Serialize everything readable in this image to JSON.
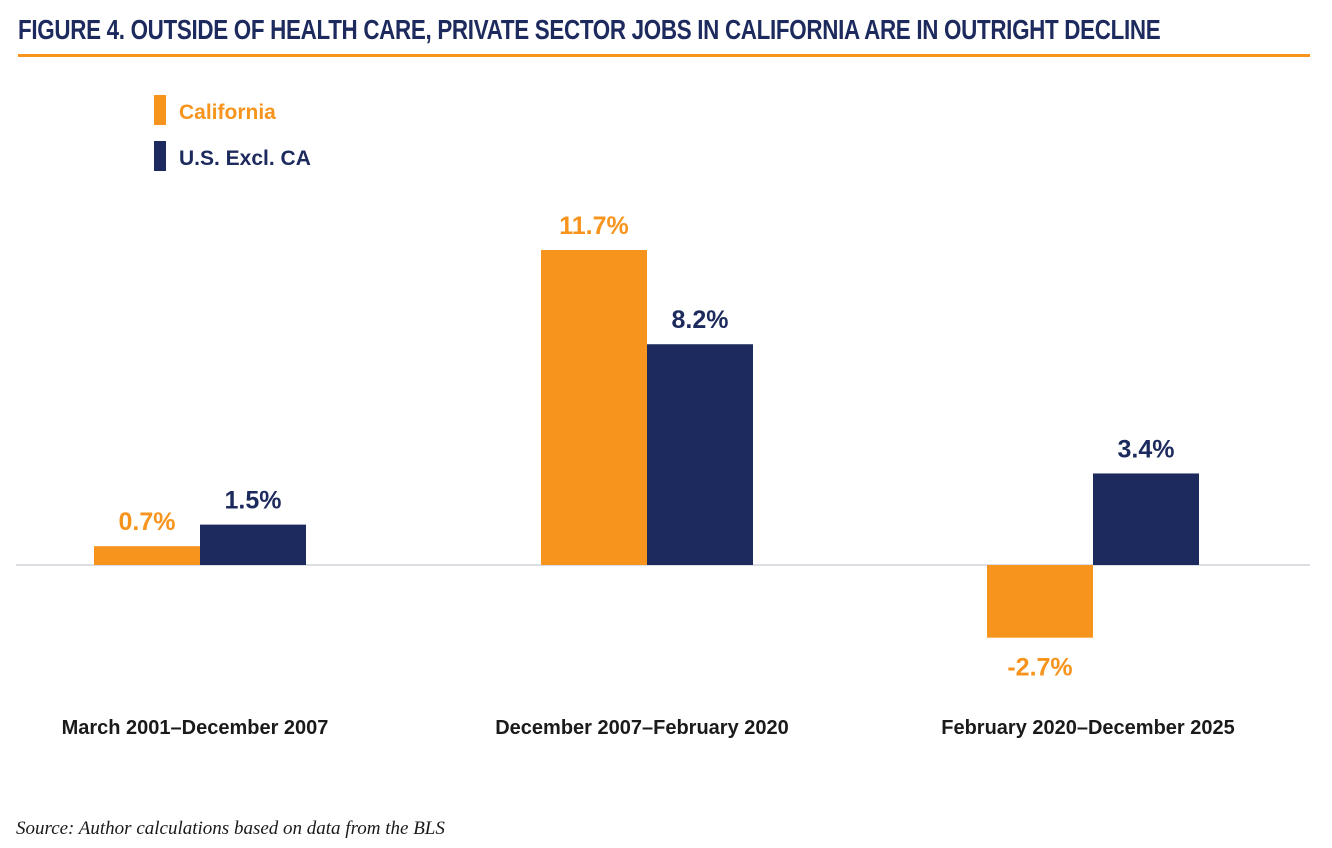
{
  "figure": {
    "label": "FIGURE 4.",
    "title": "OUTSIDE OF HEALTH CARE, PRIVATE SECTOR JOBS IN CALIFORNIA ARE IN OUTRIGHT DECLINE"
  },
  "source": "Source: Author calculations based on data from the BLS",
  "colors": {
    "california": "#f7941d",
    "us": "#1d2a5d",
    "axis": "#cfd3d8",
    "category_text": "#1a1a1a"
  },
  "chart_data": {
    "type": "bar",
    "title": "OUTSIDE OF HEALTH CARE, PRIVATE SECTOR JOBS IN CALIFORNIA ARE IN OUTRIGHT DECLINE",
    "xlabel": "",
    "ylabel": "",
    "categories": [
      "March 2001–December 2007",
      "December 2007–February 2020",
      "February 2020–December 2025"
    ],
    "series": [
      {
        "name": "California",
        "values": [
          0.7,
          11.7,
          -2.7
        ],
        "labels": [
          "0.7%",
          "11.7%",
          "-2.7%"
        ]
      },
      {
        "name": "U.S. Excl. CA",
        "values": [
          1.5,
          8.2,
          3.4
        ],
        "labels": [
          "1.5%",
          "8.2%",
          "3.4%"
        ]
      }
    ],
    "ylim": [
      -3.3,
      13.5
    ],
    "grid": false,
    "legend_position": "top-left"
  }
}
